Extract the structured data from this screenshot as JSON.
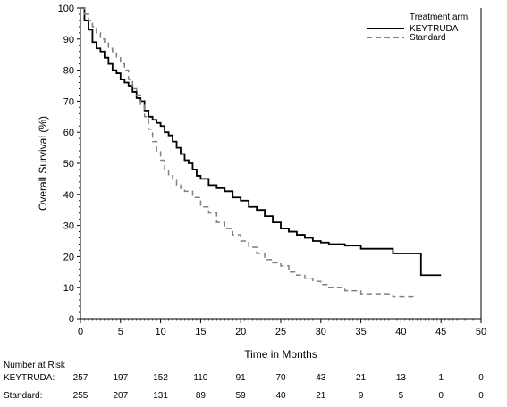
{
  "chart_data": {
    "type": "line",
    "xlabel": "Time in Months",
    "ylabel": "Overall Survival (%)",
    "xlim": [
      0,
      50
    ],
    "ylim": [
      0,
      100
    ],
    "xticks": [
      0,
      5,
      10,
      15,
      20,
      25,
      30,
      35,
      40,
      45,
      50
    ],
    "yticks": [
      0,
      10,
      20,
      30,
      40,
      50,
      60,
      70,
      80,
      90,
      100
    ],
    "grid": false,
    "legend": {
      "title": "Treatment arm",
      "position": "top-right",
      "entries": [
        "KEYTRUDA",
        "Standard"
      ]
    },
    "series": [
      {
        "name": "KEYTRUDA",
        "color": "#000000",
        "style": "solid",
        "x": [
          0,
          0.5,
          1,
          1.5,
          2,
          2.5,
          3,
          3.5,
          4,
          4.5,
          5,
          5.5,
          6,
          6.5,
          7,
          7.5,
          8,
          8.5,
          9,
          9.5,
          10,
          10.5,
          11,
          11.5,
          12,
          12.5,
          13,
          13.5,
          14,
          14.5,
          15,
          16,
          17,
          18,
          19,
          20,
          21,
          22,
          23,
          24,
          25,
          26,
          27,
          28,
          29,
          30,
          31,
          32,
          33,
          34,
          35,
          36,
          37,
          38,
          39,
          40,
          41,
          42,
          42.5,
          43,
          44,
          45
        ],
        "y": [
          100,
          96,
          93,
          89,
          87,
          86,
          84,
          82,
          80,
          79,
          77,
          76,
          75,
          73,
          71,
          70,
          67,
          65,
          64,
          63,
          62,
          60,
          59,
          57,
          55,
          53,
          51,
          50,
          48,
          46,
          45,
          43,
          42,
          41,
          39,
          38,
          36,
          35,
          33,
          31,
          29,
          28,
          27,
          26,
          25,
          24.5,
          24,
          24,
          23.5,
          23.5,
          22.5,
          22.5,
          22.5,
          22.5,
          21,
          21,
          21,
          21,
          14,
          14,
          14,
          14
        ]
      },
      {
        "name": "Standard",
        "color": "#808080",
        "style": "dashed",
        "x": [
          0,
          0.5,
          1,
          1.5,
          2,
          2.5,
          3,
          3.5,
          4,
          4.5,
          5,
          5.5,
          6,
          6.5,
          7,
          7.5,
          8,
          8.5,
          9,
          9.5,
          10,
          10.5,
          11,
          11.5,
          12,
          12.5,
          13,
          14,
          15,
          16,
          17,
          18,
          19,
          20,
          21,
          22,
          23,
          24,
          25,
          26,
          27,
          28,
          29,
          30,
          31,
          32,
          33,
          34,
          35,
          36,
          37,
          38,
          39,
          40,
          41,
          42
        ],
        "y": [
          100,
          98,
          96,
          94,
          92,
          90,
          89,
          87,
          86,
          84,
          82,
          80,
          77,
          74,
          72,
          69,
          65,
          61,
          57,
          54,
          51,
          48,
          46,
          45,
          43,
          42,
          41,
          39,
          36,
          34,
          31,
          29,
          27,
          25,
          23,
          21,
          19,
          18,
          17,
          15,
          14,
          13,
          12,
          11,
          10,
          10,
          9,
          9,
          8,
          8,
          8,
          8,
          7,
          7,
          7,
          7
        ]
      }
    ],
    "risk_table": {
      "title": "Number at Risk",
      "times": [
        0,
        5,
        10,
        15,
        20,
        25,
        30,
        35,
        40,
        45,
        50
      ],
      "rows": [
        {
          "label": "KEYTRUDA:",
          "values": [
            "257",
            "197",
            "152",
            "110",
            "91",
            "70",
            "43",
            "21",
            "13",
            "1",
            "0"
          ]
        },
        {
          "label": "Standard:",
          "values": [
            "255",
            "207",
            "131",
            "89",
            "59",
            "40",
            "21",
            "9",
            "5",
            "0",
            "0"
          ]
        }
      ]
    }
  }
}
